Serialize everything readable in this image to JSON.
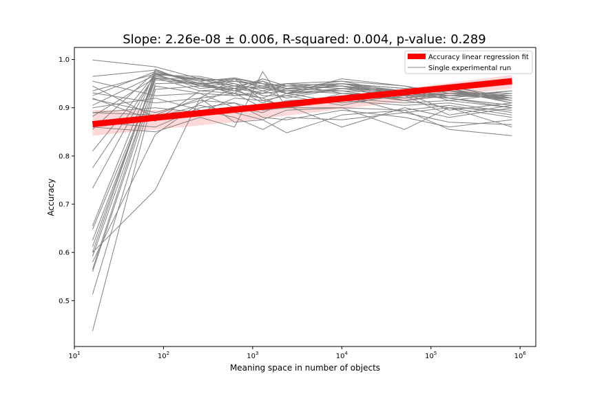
{
  "chart_data": {
    "type": "line",
    "title": "Slope: 2.26e-08 ± 0.006, R-squared: 0.004, p-value: 0.289",
    "xlabel": "Meaning space in number of objects",
    "ylabel": "Accuracy",
    "xscale": "log",
    "xlim": [
      10,
      1500000
    ],
    "ylim": [
      0.405,
      1.025
    ],
    "grid": false,
    "legend_position": "top-right",
    "x_ticks": [
      {
        "value": 10,
        "base": "10",
        "exp": "1"
      },
      {
        "value": 100,
        "base": "10",
        "exp": "2"
      },
      {
        "value": 1000,
        "base": "10",
        "exp": "3"
      },
      {
        "value": 10000,
        "base": "10",
        "exp": "4"
      },
      {
        "value": 100000,
        "base": "10",
        "exp": "5"
      },
      {
        "value": 1000000,
        "base": "10",
        "exp": "6"
      }
    ],
    "y_ticks": [
      {
        "value": 0.5,
        "label": "0.5"
      },
      {
        "value": 0.6,
        "label": "0.6"
      },
      {
        "value": 0.7,
        "label": "0.7"
      },
      {
        "value": 0.8,
        "label": "0.8"
      },
      {
        "value": 0.9,
        "label": "0.9"
      },
      {
        "value": 1.0,
        "label": "1.0"
      }
    ],
    "x": [
      16,
      81,
      256,
      625,
      1296,
      2401,
      10000,
      50625,
      160000,
      810000
    ],
    "runs": [
      [
        0.999,
        0.985,
        0.96,
        0.955,
        0.95,
        0.945,
        0.95,
        0.94,
        0.935,
        0.925
      ],
      [
        0.965,
        0.978,
        0.95,
        0.955,
        0.945,
        0.95,
        0.955,
        0.945,
        0.93,
        0.93
      ],
      [
        0.935,
        0.97,
        0.96,
        0.94,
        0.96,
        0.945,
        0.94,
        0.935,
        0.945,
        0.92
      ],
      [
        0.925,
        0.975,
        0.955,
        0.962,
        0.95,
        0.94,
        0.955,
        0.93,
        0.935,
        0.915
      ],
      [
        0.905,
        0.968,
        0.945,
        0.94,
        0.93,
        0.935,
        0.945,
        0.925,
        0.92,
        0.935
      ],
      [
        0.882,
        0.962,
        0.948,
        0.955,
        0.945,
        0.938,
        0.95,
        0.935,
        0.94,
        0.91
      ],
      [
        0.855,
        0.975,
        0.95,
        0.935,
        0.955,
        0.93,
        0.96,
        0.945,
        0.92,
        0.905
      ],
      [
        0.81,
        0.97,
        0.958,
        0.945,
        0.94,
        0.95,
        0.945,
        0.915,
        0.93,
        0.925
      ],
      [
        0.775,
        0.968,
        0.965,
        0.95,
        0.935,
        0.945,
        0.95,
        0.93,
        0.925,
        0.935
      ],
      [
        0.733,
        0.972,
        0.955,
        0.96,
        0.95,
        0.93,
        0.94,
        0.92,
        0.935,
        0.92
      ],
      [
        0.655,
        0.98,
        0.945,
        0.935,
        0.942,
        0.935,
        0.945,
        0.935,
        0.94,
        0.915
      ],
      [
        0.648,
        0.96,
        0.962,
        0.945,
        0.955,
        0.94,
        0.935,
        0.93,
        0.92,
        0.905
      ],
      [
        0.625,
        0.965,
        0.95,
        0.93,
        0.96,
        0.945,
        0.95,
        0.94,
        0.915,
        0.93
      ],
      [
        0.612,
        0.97,
        0.94,
        0.945,
        0.93,
        0.95,
        0.93,
        0.925,
        0.93,
        0.92
      ],
      [
        0.6,
        0.975,
        0.955,
        0.925,
        0.935,
        0.92,
        0.94,
        0.93,
        0.935,
        0.91
      ],
      [
        0.592,
        0.958,
        0.948,
        0.96,
        0.94,
        0.93,
        0.95,
        0.925,
        0.945,
        0.915
      ],
      [
        0.565,
        0.962,
        0.935,
        0.94,
        0.945,
        0.93,
        0.935,
        0.915,
        0.925,
        0.925
      ],
      [
        0.56,
        0.95,
        0.952,
        0.935,
        0.92,
        0.94,
        0.945,
        0.93,
        0.92,
        0.9
      ],
      [
        0.513,
        0.945,
        0.93,
        0.925,
        0.93,
        0.935,
        0.93,
        0.92,
        0.93,
        0.915
      ],
      [
        0.437,
        0.938,
        0.945,
        0.95,
        0.925,
        0.925,
        0.94,
        0.935,
        0.925,
        0.92
      ],
      [
        0.931,
        0.91,
        0.92,
        0.93,
        0.9,
        0.915,
        0.92,
        0.91,
        0.915,
        0.9
      ],
      [
        0.918,
        0.89,
        0.915,
        0.91,
        0.895,
        0.9,
        0.915,
        0.905,
        0.91,
        0.89
      ],
      [
        0.945,
        0.88,
        0.905,
        0.89,
        0.875,
        0.895,
        0.9,
        0.895,
        0.905,
        0.885
      ],
      [
        0.955,
        0.925,
        0.93,
        0.9,
        0.89,
        0.91,
        0.925,
        0.89,
        0.9,
        0.895
      ],
      [
        0.58,
        0.845,
        0.91,
        0.94,
        0.91,
        0.93,
        0.91,
        0.925,
        0.885,
        0.905
      ],
      [
        0.6,
        0.73,
        0.92,
        0.96,
        0.915,
        0.925,
        0.905,
        0.93,
        0.895,
        0.91
      ],
      [
        0.92,
        0.872,
        0.935,
        0.93,
        0.92,
        0.9,
        0.93,
        0.915,
        0.9,
        0.88
      ],
      [
        0.89,
        0.9,
        0.89,
        0.92,
        0.915,
        0.905,
        0.86,
        0.9,
        0.88,
        0.9
      ],
      [
        0.87,
        0.86,
        0.9,
        0.91,
        0.88,
        0.875,
        0.895,
        0.88,
        0.86,
        0.875
      ],
      [
        0.86,
        0.85,
        0.88,
        0.86,
        0.975,
        0.9,
        0.9,
        0.855,
        0.9,
        0.86
      ],
      [
        0.89,
        0.885,
        0.92,
        0.87,
        0.875,
        0.848,
        0.885,
        0.895,
        0.855,
        0.842
      ],
      [
        0.9,
        0.92,
        0.895,
        0.88,
        0.855,
        0.88,
        0.875,
        0.89,
        0.87,
        0.865
      ]
    ],
    "regression": {
      "x_start": 16,
      "x_end": 810000,
      "y_start": 0.866,
      "y_end": 0.955,
      "ci_start": [
        0.842,
        0.895
      ],
      "ci_mid": [
        0.87,
        0.895
      ],
      "ci_end": [
        0.94,
        0.968
      ],
      "x_mid": 600
    },
    "series": [
      {
        "name": "Accuracy linear regression fit",
        "color": "#ff0000"
      },
      {
        "name": "Single experimental run",
        "color": "#808080"
      }
    ]
  }
}
